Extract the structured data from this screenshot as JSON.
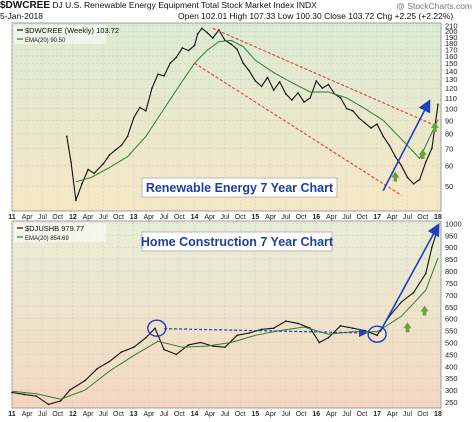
{
  "header": {
    "symbol": "$DWCREE",
    "description": "DJ U.S. Renewable Energy Equipment Total Stock Market Index",
    "exchange": "INDX",
    "watermark": "@ StockCharts.com",
    "date": "5-Jan-2018",
    "open_label": "Open",
    "open": "102.01",
    "high_label": "High",
    "high": "107.33",
    "low_label": "Low",
    "low": "100.30",
    "close_label": "Close",
    "close": "103.72",
    "change": "Chg +2.25 (+2.22%)"
  },
  "colors": {
    "price": "#111111",
    "ema": "#2e7d32",
    "channel": "#e53935",
    "trend_up": "#1e3fbf",
    "green_arrow": "#66a33a",
    "panel1_top": "#dcebd4",
    "panel1_bottom": "#f6e7c5",
    "panel2_top": "#e7efd6",
    "panel2_bottom": "#f6d7c0"
  },
  "chart_data": [
    {
      "type": "line",
      "legend": [
        "$DWCREE (Weekly) 103.72",
        "EMA(20) 90.50"
      ],
      "annotation": "Renewable Energy 7 Year Chart",
      "y_ticks": [
        50,
        60,
        70,
        80,
        90,
        100,
        110,
        120,
        130,
        140,
        150,
        160,
        170,
        180,
        190,
        200,
        210
      ],
      "ylim": [
        40,
        215
      ],
      "y_scale": "log",
      "x_ticks": [
        "11",
        "Apr",
        "Jul",
        "Oct",
        "12",
        "Apr",
        "Jul",
        "Oct",
        "13",
        "Apr",
        "Jul",
        "Oct",
        "14",
        "Apr",
        "Jul",
        "Oct",
        "15",
        "Apr",
        "Jul",
        "Oct",
        "16",
        "Apr",
        "Jul",
        "Oct",
        "17",
        "Apr",
        "Jul",
        "Oct",
        "18"
      ],
      "series": [
        {
          "name": "$DWCREE (Weekly)",
          "x": [
            2011.9,
            2011.97,
            2012.05,
            2012.15,
            2012.25,
            2012.35,
            2012.5,
            2012.6,
            2012.7,
            2012.8,
            2012.9,
            2013.0,
            2013.1,
            2013.2,
            2013.3,
            2013.4,
            2013.5,
            2013.6,
            2013.7,
            2013.8,
            2013.9,
            2014.0,
            2014.05,
            2014.12,
            2014.2,
            2014.3,
            2014.4,
            2014.5,
            2014.6,
            2014.7,
            2014.8,
            2014.9,
            2015.0,
            2015.1,
            2015.2,
            2015.3,
            2015.4,
            2015.5,
            2015.6,
            2015.7,
            2015.8,
            2015.9,
            2016.0,
            2016.1,
            2016.2,
            2016.3,
            2016.4,
            2016.5,
            2016.6,
            2016.7,
            2016.8,
            2016.9,
            2017.0,
            2017.1,
            2017.2,
            2017.3,
            2017.4,
            2017.5,
            2017.6,
            2017.7,
            2017.8,
            2017.9,
            2018.0
          ],
          "y": [
            78,
            62,
            44,
            51,
            58,
            56,
            61,
            66,
            69,
            72,
            78,
            92,
            101,
            98,
            120,
            136,
            134,
            150,
            158,
            172,
            168,
            176,
            195,
            205,
            198,
            188,
            202,
            184,
            178,
            170,
            150,
            140,
            128,
            122,
            132,
            118,
            127,
            114,
            108,
            115,
            106,
            110,
            128,
            120,
            124,
            114,
            110,
            100,
            98,
            92,
            88,
            84,
            87,
            78,
            72,
            65,
            60,
            54,
            51,
            53,
            62,
            70,
            103.72
          ]
        },
        {
          "name": "EMA(20)",
          "x": [
            2012.05,
            2012.3,
            2012.6,
            2012.9,
            2013.2,
            2013.5,
            2013.8,
            2014.0,
            2014.2,
            2014.4,
            2014.6,
            2014.8,
            2015.0,
            2015.3,
            2015.6,
            2015.9,
            2016.2,
            2016.5,
            2016.8,
            2017.1,
            2017.4,
            2017.7,
            2018.0
          ],
          "y": [
            52,
            54,
            59,
            65,
            78,
            100,
            128,
            150,
            168,
            182,
            184,
            174,
            154,
            138,
            126,
            116,
            116,
            110,
            100,
            90,
            76,
            64,
            90.5
          ]
        }
      ]
    },
    {
      "type": "line",
      "legend": [
        "$DJUSHB 979.77",
        "EMA(20) 854.69"
      ],
      "annotation": "Home Construction 7 Year Chart",
      "y_ticks": [
        250,
        300,
        350,
        400,
        450,
        500,
        550,
        600,
        650,
        700,
        750,
        800,
        850,
        900,
        950,
        1000
      ],
      "ylim": [
        225,
        1010
      ],
      "x_ticks": [
        "11",
        "Apr",
        "Jul",
        "Oct",
        "12",
        "Apr",
        "Jul",
        "Oct",
        "13",
        "Apr",
        "Jul",
        "Oct",
        "14",
        "Apr",
        "Jul",
        "Oct",
        "15",
        "Apr",
        "Jul",
        "Oct",
        "16",
        "Apr",
        "Jul",
        "Oct",
        "17",
        "Apr",
        "Jul",
        "Oct",
        "18"
      ],
      "series": [
        {
          "name": "$DJUSHB",
          "x": [
            2011.0,
            2011.2,
            2011.4,
            2011.6,
            2011.8,
            2011.95,
            2012.2,
            2012.4,
            2012.6,
            2012.8,
            2013.0,
            2013.2,
            2013.35,
            2013.5,
            2013.7,
            2013.9,
            2014.1,
            2014.3,
            2014.5,
            2014.7,
            2014.9,
            2015.1,
            2015.3,
            2015.5,
            2015.7,
            2015.9,
            2016.05,
            2016.2,
            2016.4,
            2016.6,
            2016.8,
            2017.0,
            2017.2,
            2017.4,
            2017.6,
            2017.8,
            2017.9,
            2018.0
          ],
          "y": [
            290,
            282,
            275,
            240,
            255,
            300,
            340,
            390,
            420,
            460,
            480,
            520,
            560,
            470,
            450,
            490,
            500,
            485,
            480,
            530,
            540,
            555,
            560,
            590,
            580,
            560,
            500,
            520,
            570,
            560,
            550,
            530,
            610,
            670,
            710,
            790,
            900,
            979.77
          ]
        },
        {
          "name": "EMA(20)",
          "x": [
            2011.0,
            2011.4,
            2011.8,
            2012.2,
            2012.6,
            2013.0,
            2013.4,
            2013.8,
            2014.2,
            2014.6,
            2015.0,
            2015.4,
            2015.8,
            2016.2,
            2016.6,
            2017.0,
            2017.4,
            2017.8,
            2018.0
          ],
          "y": [
            295,
            285,
            262,
            300,
            380,
            445,
            505,
            480,
            485,
            500,
            530,
            550,
            565,
            535,
            545,
            545,
            610,
            720,
            854.69
          ]
        }
      ]
    }
  ]
}
